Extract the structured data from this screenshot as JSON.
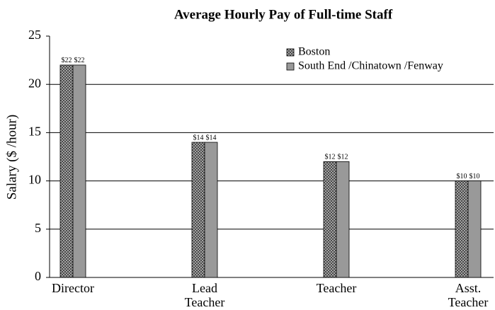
{
  "chart_data": {
    "type": "bar",
    "title": "Average Hourly Pay of Full-time Staff",
    "y_label": "Salary ($ /hour)",
    "categories": [
      "Director",
      "Lead Teacher",
      "Teacher",
      "Asst. Teacher"
    ],
    "series": [
      {
        "name": "Boston",
        "color": "#999999",
        "pattern": "crosshatch",
        "values": [
          22,
          14,
          12,
          10
        ],
        "value_labels": [
          "$22",
          "$14",
          "$12",
          "$10"
        ]
      },
      {
        "name": "South End /Chinatown /Fenway",
        "color": "#999999",
        "values": [
          22,
          14,
          12,
          10
        ],
        "value_labels": [
          "$22",
          "$14",
          "$12",
          "$10"
        ]
      }
    ],
    "ylim": [
      0,
      25
    ],
    "yticks": [
      0,
      5,
      10,
      15,
      20,
      25
    ],
    "grid": true,
    "legend": "upper right"
  }
}
